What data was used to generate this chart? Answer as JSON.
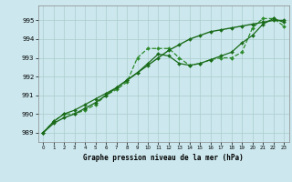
{
  "title": "Graphe pression niveau de la mer (hPa)",
  "bg_color": "#cce8ee",
  "grid_color": "#aacccc",
  "line_color_main": "#1a6b1a",
  "line_color_dashed": "#2d8b2d",
  "xlim": [
    -0.5,
    23.5
  ],
  "ylim": [
    988.5,
    995.8
  ],
  "yticks": [
    989,
    990,
    991,
    992,
    993,
    994,
    995
  ],
  "xticks": [
    0,
    1,
    2,
    3,
    4,
    5,
    6,
    7,
    8,
    9,
    10,
    11,
    12,
    13,
    14,
    15,
    16,
    17,
    18,
    19,
    20,
    21,
    22,
    23
  ],
  "series1": [
    989.0,
    989.6,
    990.0,
    990.0,
    990.2,
    990.5,
    991.0,
    991.3,
    991.7,
    993.0,
    993.5,
    993.5,
    993.5,
    993.0,
    992.6,
    992.7,
    992.9,
    993.0,
    993.0,
    993.3,
    994.6,
    995.1,
    995.1,
    994.7
  ],
  "series2": [
    989.0,
    989.5,
    989.8,
    990.0,
    990.3,
    990.6,
    991.0,
    991.4,
    991.8,
    992.2,
    992.6,
    993.0,
    993.4,
    993.7,
    994.0,
    994.2,
    994.4,
    994.5,
    994.6,
    994.7,
    994.8,
    994.9,
    995.0,
    995.0
  ],
  "series3": [
    989.0,
    989.6,
    990.0,
    990.2,
    990.5,
    990.8,
    991.1,
    991.4,
    991.8,
    992.2,
    992.7,
    993.2,
    993.1,
    992.7,
    992.6,
    992.7,
    992.9,
    993.1,
    993.3,
    993.8,
    994.2,
    994.8,
    995.1,
    994.9
  ]
}
